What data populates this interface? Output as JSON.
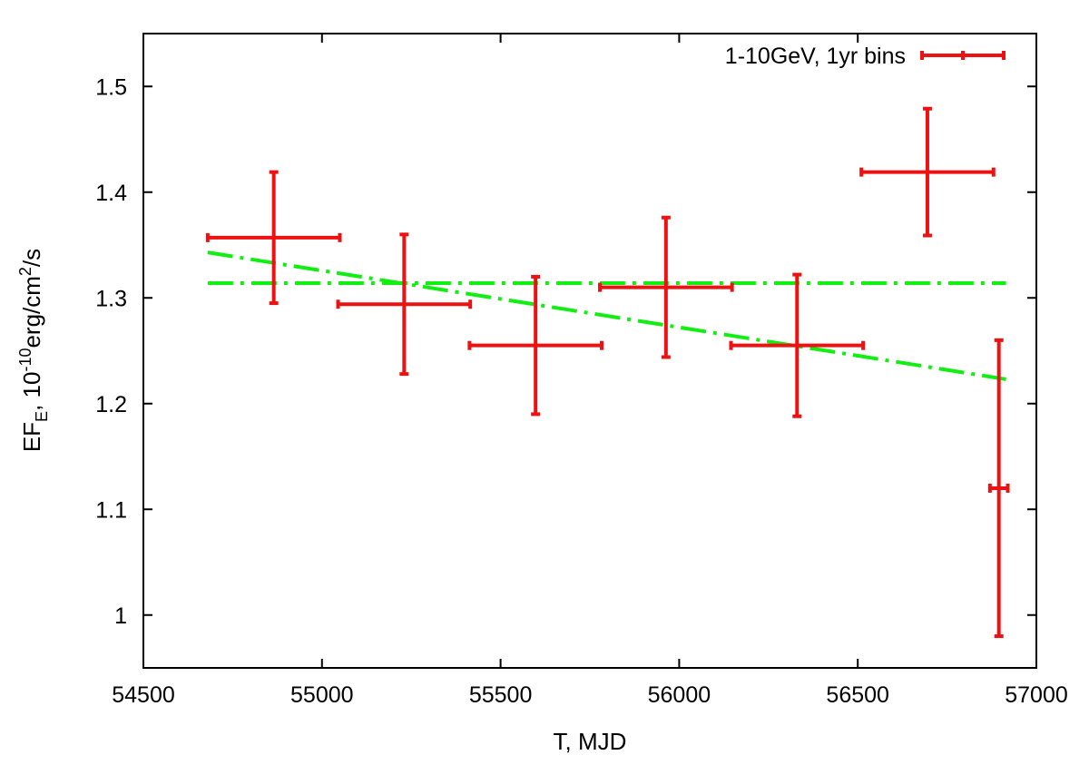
{
  "chart_data": {
    "type": "scatter",
    "title": "",
    "xlabel": "T, MJD",
    "ylabel": {
      "base": "EF",
      "sub": "E",
      "unit_a": ", 10",
      "exp_a": "-10",
      "unit_b": "erg/cm",
      "exp_b": "2",
      "unit_c": "/s"
    },
    "xlim": [
      54500,
      57000
    ],
    "ylim": [
      0.95,
      1.55
    ],
    "x_ticks": [
      54500,
      55000,
      55500,
      56000,
      56500,
      57000
    ],
    "y_ticks": [
      1,
      1.1,
      1.2,
      1.3,
      1.4,
      1.5
    ],
    "grid": false,
    "legend_position": "top-right",
    "series": [
      {
        "name": "1-10GeV, 1yr bins",
        "kind": "errorbar",
        "color": "#ee1111",
        "points": [
          {
            "x": 54865,
            "y": 1.357,
            "xerr": 185,
            "yerr_low": 0.062,
            "yerr_high": 0.062
          },
          {
            "x": 55230,
            "y": 1.294,
            "xerr": 185,
            "yerr_low": 0.066,
            "yerr_high": 0.066
          },
          {
            "x": 55598,
            "y": 1.255,
            "xerr": 185,
            "yerr_low": 0.065,
            "yerr_high": 0.065
          },
          {
            "x": 55963,
            "y": 1.31,
            "xerr": 185,
            "yerr_low": 0.066,
            "yerr_high": 0.066
          },
          {
            "x": 56330,
            "y": 1.255,
            "xerr": 185,
            "yerr_low": 0.067,
            "yerr_high": 0.067
          },
          {
            "x": 56695,
            "y": 1.419,
            "xerr": 185,
            "yerr_low": 0.06,
            "yerr_high": 0.06
          },
          {
            "x": 56895,
            "y": 1.12,
            "xerr": 25,
            "yerr_low": 0.14,
            "yerr_high": 0.14
          }
        ]
      },
      {
        "kind": "line",
        "style": "dash-dot",
        "color": "#11ee11",
        "points": [
          {
            "x": 54680,
            "y": 1.314
          },
          {
            "x": 56915,
            "y": 1.314
          }
        ]
      },
      {
        "kind": "line",
        "style": "dash-dot",
        "color": "#11ee11",
        "points": [
          {
            "x": 54680,
            "y": 1.343
          },
          {
            "x": 56915,
            "y": 1.223
          }
        ]
      }
    ]
  }
}
